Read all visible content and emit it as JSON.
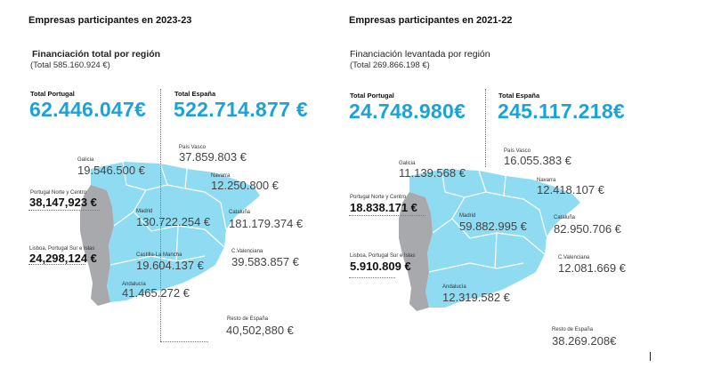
{
  "left": {
    "section_title": "Empresas participantes en 2023-23",
    "subtitle": "Financiación total por región",
    "total_note": "(Total  585.160.924 €)",
    "portugal": {
      "label": "Total Portugal",
      "value": "62.446.047€"
    },
    "spain": {
      "label": "Total España",
      "value": "522.714.877 €"
    },
    "regions": {
      "galicia": {
        "label": "Galicia",
        "value": "19.546.500 €"
      },
      "pais_vasco": {
        "label": "País Vasco",
        "value": "37.859.803 €"
      },
      "navarra": {
        "label": "Navarra",
        "value": "12.250.800 €"
      },
      "madrid": {
        "label": "Madrid",
        "value": "130.722.254 €"
      },
      "cataluna": {
        "label": "Cataluña",
        "value": "181.179.374 €"
      },
      "castilla": {
        "label": "Castilla-La Mancha",
        "value": "19.604.137 €"
      },
      "valenciana": {
        "label": "C.Valenciana",
        "value": "39.583.857 €"
      },
      "andalucia": {
        "label": "Andalucía",
        "value": "41.465.272 €"
      },
      "resto": {
        "label": "Resto de España",
        "value": "40,502,880 €"
      },
      "pt_norte": {
        "label": "Portugal Norte y Centro",
        "value": "38,147,923 €"
      },
      "pt_lisboa": {
        "label": "Lisboa, Portugal Sur e Islas",
        "value": "24,298,124 €"
      }
    }
  },
  "right": {
    "section_title": "Empresas participantes en 2021-22",
    "subtitle": "Financiación levantada por región",
    "total_note": "(Total 269.866.198 €)",
    "portugal": {
      "label": "Total Portugal",
      "value": "24.748.980€"
    },
    "spain": {
      "label": "Total España",
      "value": "245.117.218€"
    },
    "regions": {
      "galicia": {
        "label": "Galicia",
        "value": "11.139.568 €"
      },
      "pais_vasco": {
        "label": "País Vasco",
        "value": "16.055.383 €"
      },
      "navarra": {
        "label": "Navarra",
        "value": "12.418.107 €"
      },
      "madrid": {
        "label": "Madrid",
        "value": "59.882.995 €"
      },
      "cataluna": {
        "label": "Cataluña",
        "value": "82.950.706 €"
      },
      "valenciana": {
        "label": "C.Valenciana",
        "value": "12.081.669 €"
      },
      "andalucia": {
        "label": "Andalucía",
        "value": "12.319.582 €"
      },
      "resto": {
        "label": "Resto de España",
        "value": "38.269.208€"
      },
      "pt_norte": {
        "label": "Portugal Norte y Centro",
        "value": "18.838.171 €"
      },
      "pt_lisboa": {
        "label": "Lisboa, Portugal Sur e Islas",
        "value": "5.910.809 €"
      }
    }
  },
  "colors": {
    "map_spain": "#8fdcf2",
    "map_portugal": "#a7a9ac",
    "accent": "#1aa3d9"
  }
}
